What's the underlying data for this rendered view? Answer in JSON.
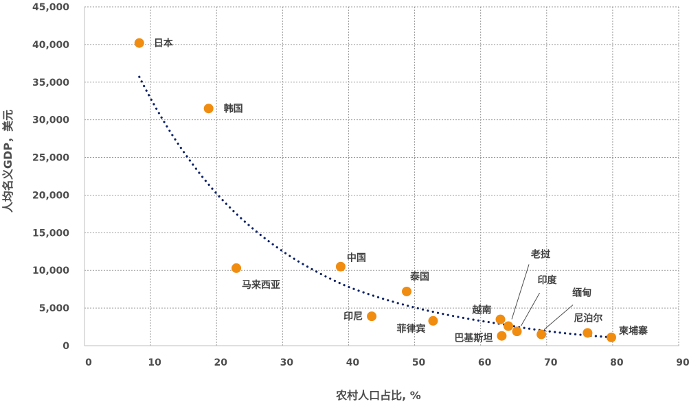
{
  "chart_data": {
    "type": "scatter",
    "xlabel": "农村人口占比, %",
    "ylabel": "人均名义GDP，美元",
    "xlim": [
      0,
      90
    ],
    "ylim": [
      0,
      45000
    ],
    "x_ticks": [
      0,
      10,
      20,
      30,
      40,
      50,
      60,
      70,
      80,
      90
    ],
    "x_tick_labels": [
      "0",
      "10",
      "20",
      "30",
      "40",
      "50",
      "60",
      "70",
      "80",
      "90"
    ],
    "y_ticks": [
      0,
      5000,
      10000,
      15000,
      20000,
      25000,
      30000,
      35000,
      40000,
      45000
    ],
    "y_tick_labels": [
      "0",
      "5,000",
      "10,000",
      "15,000",
      "20,000",
      "25,000",
      "30,000",
      "35,000",
      "40,000",
      "45,000"
    ],
    "grid": true,
    "point_color": "#f08c0f",
    "trend_color": "#0d2266",
    "trendline": {
      "type": "power",
      "style": "dotted",
      "x_range": [
        8.3,
        80
      ],
      "points": [
        [
          8.3,
          35700
        ],
        [
          20,
          20200
        ],
        [
          40,
          7800
        ],
        [
          63,
          2900
        ],
        [
          80,
          1100
        ]
      ]
    },
    "points": [
      {
        "label": "日本",
        "x": 8.3,
        "y": 40200
      },
      {
        "label": "韩国",
        "x": 18.8,
        "y": 31500
      },
      {
        "label": "马来西亚",
        "x": 23,
        "y": 10300
      },
      {
        "label": "中国",
        "x": 38.8,
        "y": 10500
      },
      {
        "label": "印尼",
        "x": 43.5,
        "y": 3900
      },
      {
        "label": "泰国",
        "x": 48.8,
        "y": 7200
      },
      {
        "label": "菲律宾",
        "x": 52.8,
        "y": 3300
      },
      {
        "label": "越南",
        "x": 63,
        "y": 3500
      },
      {
        "label": "老挝",
        "x": 64.2,
        "y": 2600
      },
      {
        "label": "巴基斯坦",
        "x": 63.2,
        "y": 1300
      },
      {
        "label": "印度",
        "x": 65.5,
        "y": 1900
      },
      {
        "label": "缅甸",
        "x": 69.2,
        "y": 1500
      },
      {
        "label": "尼泊尔",
        "x": 76.2,
        "y": 1700
      },
      {
        "label": "柬埔寨",
        "x": 79.8,
        "y": 1100
      }
    ]
  }
}
